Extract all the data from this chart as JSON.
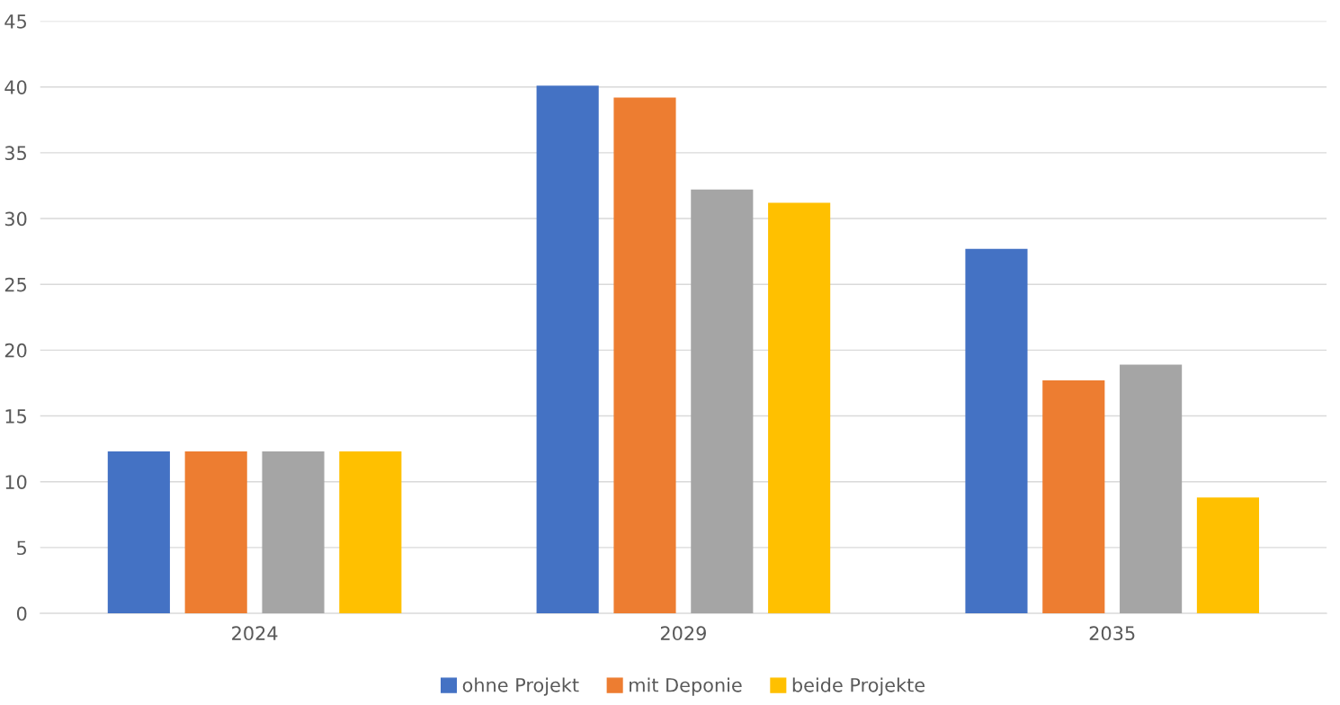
{
  "chart_data": {
    "type": "bar",
    "categories": [
      "2024",
      "2029",
      "2035"
    ],
    "series": [
      {
        "name": "ohne Projekt",
        "color": "#4472c4",
        "values": [
          12.3,
          40.1,
          27.7
        ]
      },
      {
        "name": "mit Deponie",
        "color": "#ed7d31",
        "values": [
          12.3,
          39.2,
          17.7
        ]
      },
      {
        "color": "#a5a5a5",
        "values": [
          12.3,
          32.2,
          18.9
        ]
      },
      {
        "name": "beide Projekte",
        "color": "#ffc000",
        "values": [
          12.3,
          31.2,
          8.8
        ]
      }
    ],
    "ylim": [
      0,
      45
    ],
    "yticks": [
      0,
      5,
      10,
      15,
      20,
      25,
      30,
      35,
      40,
      45
    ],
    "grid": "y",
    "legend": "bottom"
  }
}
